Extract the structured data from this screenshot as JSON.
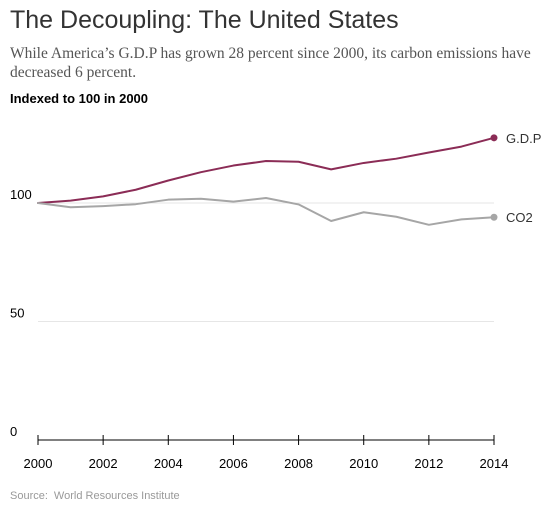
{
  "title": "The Decoupling: The United States",
  "subtitle": "While America’s G.D.P has grown 28 percent since 2000, its carbon emissions have decreased 6 percent.",
  "index_note": "Indexed to 100 in 2000",
  "source": {
    "label": "Source:",
    "text": "World Resources Institute"
  },
  "colors": {
    "gdp": "#8b2c56",
    "co2": "#a6a6a6",
    "grid": "#e6e6e6",
    "axis": "#000000"
  },
  "chart_data": {
    "type": "line",
    "title": "The Decoupling: The United States",
    "subtitle": "Indexed to 100 in 2000",
    "xlabel": "",
    "ylabel": "",
    "x": [
      2000,
      2001,
      2002,
      2003,
      2004,
      2005,
      2006,
      2007,
      2008,
      2009,
      2010,
      2011,
      2012,
      2013,
      2014
    ],
    "xticks": [
      2000,
      2002,
      2004,
      2006,
      2008,
      2010,
      2012,
      2014
    ],
    "yticks": [
      0,
      50,
      100
    ],
    "xlim": [
      2000,
      2014
    ],
    "ylim": [
      0,
      128
    ],
    "grid": true,
    "legend": "labels at line ends",
    "series": [
      {
        "name": "G.D.P",
        "values": [
          100,
          101,
          102.8,
          105.6,
          109.5,
          113,
          115.8,
          117.7,
          117.4,
          114.2,
          116.9,
          118.7,
          121.3,
          123.8,
          127.5
        ]
      },
      {
        "name": "CO2",
        "values": [
          100,
          98.2,
          98.7,
          99.5,
          101.4,
          101.8,
          100.6,
          102.1,
          99.4,
          92.4,
          96.1,
          94.2,
          90.8,
          93.1,
          94
        ]
      }
    ]
  }
}
